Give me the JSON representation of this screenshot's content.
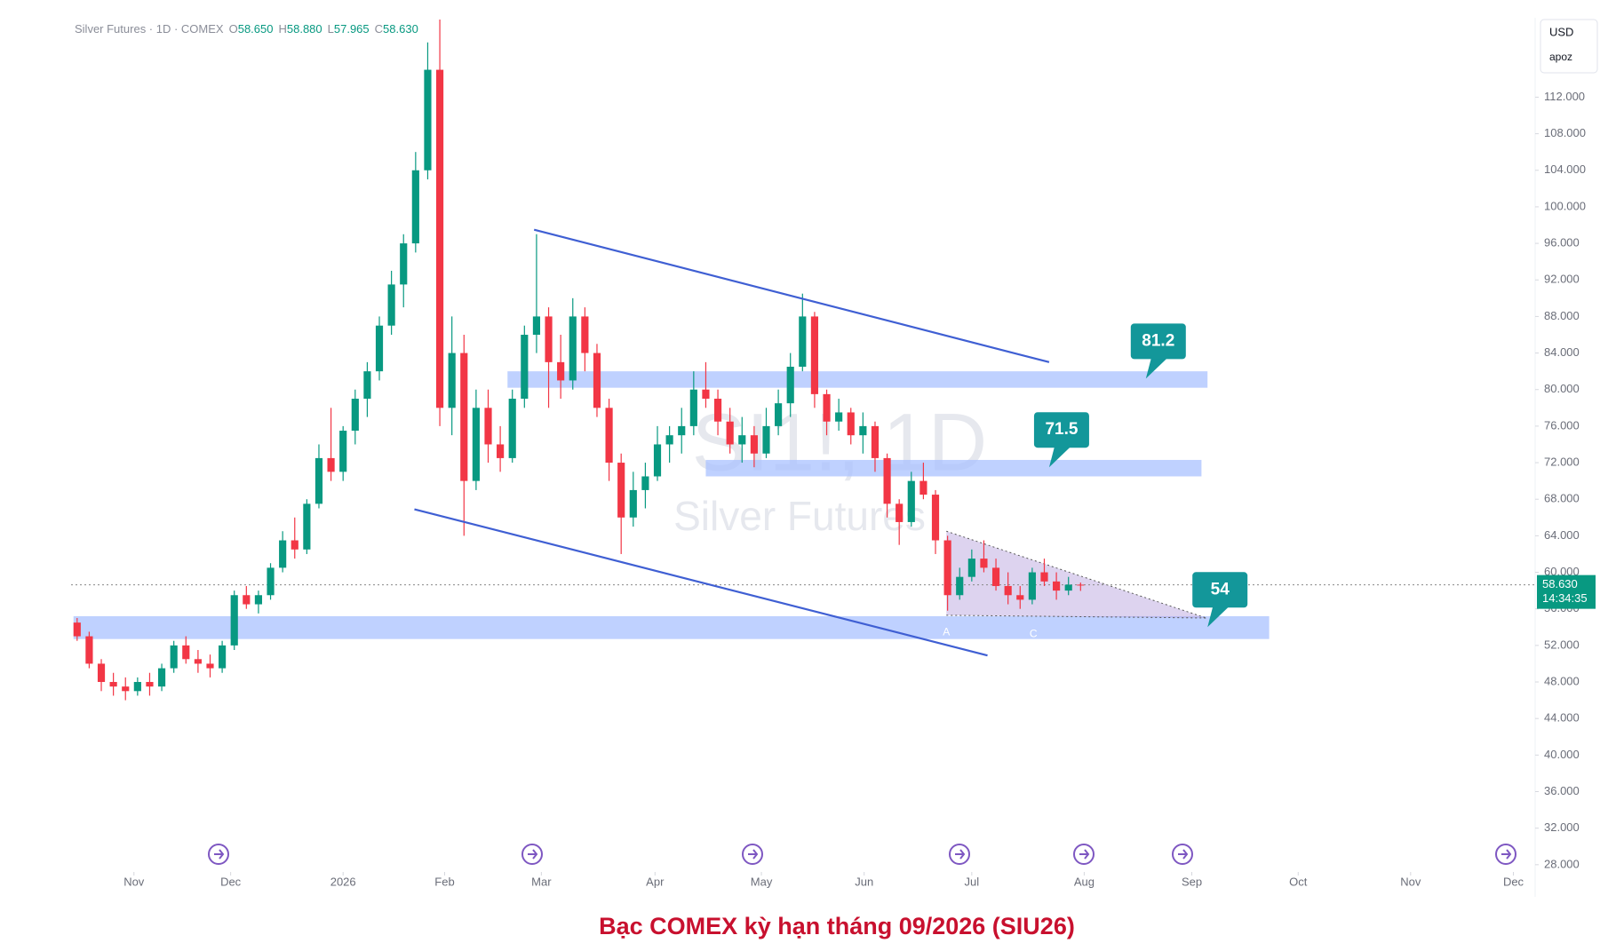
{
  "chart_data": {
    "type": "candlestick",
    "header": "Silver Futures · 1D · COMEX",
    "ohlc_readout": [
      [
        "O",
        "58.650"
      ],
      [
        "H",
        "58.880"
      ],
      [
        "L",
        "57.965"
      ],
      [
        "C",
        "58.630"
      ]
    ],
    "watermark": "SI1!, 1D",
    "watermark_subtitle": "Silver Futures",
    "currency": "USD",
    "scale_label": "apoz",
    "caption": "Bạc COMEX kỳ hạn tháng 09/2026 (SIU26)",
    "up_color": "#089981",
    "down_color": "#f23645",
    "open": [
      54.5,
      53,
      50,
      48,
      47.5,
      47,
      48,
      47.5,
      49.5,
      52,
      50.5,
      50,
      49.5,
      52,
      57.5,
      56.5,
      57.5,
      60.5,
      63.5,
      62.5,
      67.5,
      72.5,
      71,
      75.5,
      79,
      82,
      87,
      91.5,
      96,
      104,
      115,
      78,
      84,
      70,
      78,
      74,
      72.5,
      79,
      86,
      88,
      83,
      81,
      88,
      84,
      78,
      72,
      66,
      69,
      70.5,
      74,
      75,
      76,
      80,
      79,
      76.5,
      74,
      75,
      73,
      76,
      78.5,
      82.5,
      88,
      79.5,
      76.5,
      77.5,
      75,
      76,
      72.5,
      67.5,
      65.5,
      70,
      68.5,
      63.5,
      57.5,
      59.5,
      61.5,
      60.5,
      58.5,
      57.5,
      57,
      60,
      59,
      58,
      58.65
    ],
    "high": [
      55,
      53.5,
      50.5,
      49,
      48.5,
      48.5,
      49,
      50,
      52.5,
      53,
      51.5,
      51,
      52.5,
      58,
      58.5,
      58,
      61,
      64.5,
      66,
      68,
      74,
      78,
      76,
      80,
      83,
      88,
      93,
      97,
      106,
      118,
      120.5,
      88,
      86,
      80,
      80,
      76,
      80,
      87,
      97,
      89,
      86,
      90,
      89,
      85,
      79,
      73,
      71,
      72,
      76,
      76,
      78,
      82,
      83,
      80,
      78,
      77,
      76,
      78,
      80,
      84,
      90.5,
      88.5,
      80,
      79,
      78,
      77.5,
      76.5,
      73,
      68,
      71,
      72,
      69,
      64,
      60.5,
      62.5,
      63.5,
      61.5,
      60,
      58.5,
      60.5,
      61.5,
      60,
      59.5,
      58.88
    ],
    "low": [
      52.5,
      49.5,
      47,
      46.5,
      46,
      46.5,
      46.5,
      47,
      49,
      50,
      49,
      48.5,
      49,
      51.5,
      56,
      55.5,
      57,
      60,
      61.5,
      62,
      67,
      70,
      70,
      74,
      77,
      81,
      86,
      89,
      95,
      103,
      76,
      75,
      64,
      69,
      72,
      71,
      72,
      78,
      84,
      78,
      79,
      80,
      82,
      77,
      70,
      62,
      65,
      67,
      70,
      72,
      73,
      75,
      78,
      75,
      73,
      72,
      71.5,
      72.5,
      75,
      77,
      82,
      78,
      75,
      75.5,
      74,
      73,
      71,
      66,
      63,
      65,
      68,
      62,
      55.8,
      57,
      59,
      60,
      58,
      56.5,
      56,
      56.5,
      58.5,
      57,
      57.5,
      57.965
    ],
    "close": [
      53,
      50,
      48,
      47.5,
      47,
      48,
      47.5,
      49.5,
      52,
      50.5,
      50,
      49.5,
      52,
      57.5,
      56.5,
      57.5,
      60.5,
      63.5,
      62.5,
      67.5,
      72.5,
      71,
      75.5,
      79,
      82,
      87,
      91.5,
      96,
      104,
      115,
      78,
      84,
      70,
      78,
      74,
      72.5,
      79,
      86,
      88,
      83,
      81,
      88,
      84,
      78,
      72,
      66,
      69,
      70.5,
      74,
      75,
      76,
      80,
      79,
      76.5,
      74,
      75,
      73,
      76,
      78.5,
      82.5,
      88,
      79.5,
      76.5,
      77.5,
      75,
      76,
      72.5,
      67.5,
      65.5,
      70,
      68.5,
      63.5,
      57.5,
      59.5,
      61.5,
      60.5,
      58.5,
      57.5,
      57,
      60,
      59,
      58,
      58.65,
      58.63
    ],
    "xlim": [
      -0.5,
      120.6
    ],
    "ylim": [
      27.4,
      120.4
    ],
    "xticks": [
      {
        "value": 4.7,
        "label": "Nov"
      },
      {
        "value": 12.7,
        "label": "Dec"
      },
      {
        "value": 22.0,
        "label": "2026"
      },
      {
        "value": 30.4,
        "label": "Feb"
      },
      {
        "value": 38.4,
        "label": "Mar"
      },
      {
        "value": 47.8,
        "label": "Apr"
      },
      {
        "value": 56.6,
        "label": "May"
      },
      {
        "value": 65.1,
        "label": "Jun"
      },
      {
        "value": 74.0,
        "label": "Jul"
      },
      {
        "value": 83.3,
        "label": "Aug"
      },
      {
        "value": 92.2,
        "label": "Sep"
      },
      {
        "value": 101.0,
        "label": "Oct"
      },
      {
        "value": 110.3,
        "label": "Nov"
      },
      {
        "value": 118.8,
        "label": "Dec"
      }
    ],
    "yticks": [
      {
        "value": 28,
        "label": "28.000"
      },
      {
        "value": 32,
        "label": "32.000"
      },
      {
        "value": 36,
        "label": "36.000"
      },
      {
        "value": 40,
        "label": "40.000"
      },
      {
        "value": 44,
        "label": "44.000"
      },
      {
        "value": 48,
        "label": "48.000"
      },
      {
        "value": 52,
        "label": "52.000"
      },
      {
        "value": 56,
        "label": "56.000"
      },
      {
        "value": 60,
        "label": "60.000"
      },
      {
        "value": 64,
        "label": "64.000"
      },
      {
        "value": 68,
        "label": "68.000"
      },
      {
        "value": 72,
        "label": "72.000"
      },
      {
        "value": 76,
        "label": "76.000"
      },
      {
        "value": 80,
        "label": "80.000"
      },
      {
        "value": 84,
        "label": "84.000"
      },
      {
        "value": 88,
        "label": "88.000"
      },
      {
        "value": 92,
        "label": "92.000"
      },
      {
        "value": 96,
        "label": "96.000"
      },
      {
        "value": 100,
        "label": "100.000"
      },
      {
        "value": 104,
        "label": "104.000"
      },
      {
        "value": 108,
        "label": "108.000"
      },
      {
        "value": 112,
        "label": "112.000"
      }
    ],
    "last_price": {
      "value": 58.63,
      "label": "58.630"
    },
    "countdown": "14:34:35",
    "zones": [
      {
        "x": [
          35.6,
          93.5
        ],
        "y": [
          80.2,
          82.0
        ]
      },
      {
        "x": [
          52.0,
          93.0
        ],
        "y": [
          70.5,
          72.3
        ]
      },
      {
        "x": [
          -0.3,
          98.6
        ],
        "y": [
          52.7,
          55.2
        ]
      }
    ],
    "zone_color": "#a9c1ff",
    "trendlines": [
      {
        "points": [
          [
            37.8,
            97.5
          ],
          [
            80.4,
            83.0
          ]
        ]
      },
      {
        "points": [
          [
            27.9,
            66.9
          ],
          [
            75.3,
            50.9
          ]
        ]
      }
    ],
    "trendline_color": "#3f5fd3",
    "triangle": {
      "points": [
        [
          71.9,
          64.5
        ],
        [
          71.9,
          55.3
        ],
        [
          93.4,
          55.0
        ]
      ],
      "color": "#b39ddb"
    },
    "pattern_labels": [
      {
        "text": "A",
        "x": 71.9,
        "y": 53.4
      },
      {
        "text": "C",
        "x": 79.1,
        "y": 53.2
      }
    ],
    "callouts": [
      {
        "value": 81.2,
        "x": 88.4
      },
      {
        "value": 71.5,
        "x": 80.4
      },
      {
        "value": 54,
        "x": 93.5
      }
    ],
    "callout_color": "#13979a"
  }
}
